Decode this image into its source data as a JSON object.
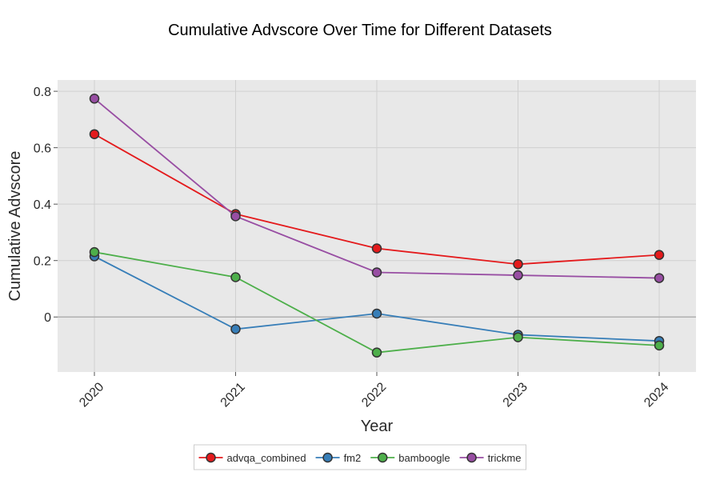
{
  "chart_data": {
    "type": "line",
    "title": "Cumulative Advscore Over Time for Different Datasets",
    "xlabel": "Year",
    "ylabel": "Cumulative Advscore",
    "x": [
      "2020",
      "2021",
      "2022",
      "2023",
      "2024"
    ],
    "ylim": [
      -0.195,
      0.84
    ],
    "yticks": [
      0,
      0.2,
      0.4,
      0.6,
      0.8
    ],
    "ytick_labels": [
      "0",
      "0.2",
      "0.4",
      "0.6",
      "0.8"
    ],
    "grid": true,
    "legend_position": "bottom-center",
    "plot_background": "#e8e8e8",
    "series": [
      {
        "name": "advqa_combined",
        "color": "#e41a1c",
        "values": [
          0.648,
          0.365,
          0.243,
          0.187,
          0.22
        ]
      },
      {
        "name": "fm2",
        "color": "#377eb8",
        "values": [
          0.215,
          -0.043,
          0.012,
          -0.063,
          -0.085
        ]
      },
      {
        "name": "bamboogle",
        "color": "#4daf4a",
        "values": [
          0.23,
          0.141,
          -0.126,
          -0.072,
          -0.101
        ]
      },
      {
        "name": "trickme",
        "color": "#984ea3",
        "values": [
          0.774,
          0.357,
          0.158,
          0.148,
          0.138
        ]
      }
    ]
  }
}
